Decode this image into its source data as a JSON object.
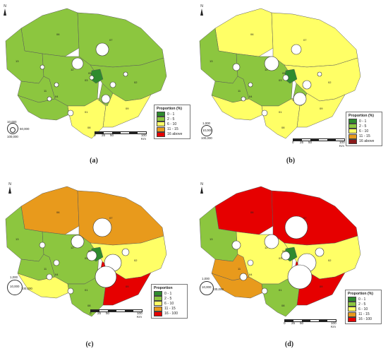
{
  "colors": {
    "c1": "#2e8b2e",
    "c2": "#8cc63f",
    "c3": "#ffff66",
    "c4": "#e89a1c",
    "c5": "#e60000",
    "c5b": "#8b1a1a",
    "border": "#5a5a5a",
    "circle": "#ffffff"
  },
  "north_label": "N",
  "scale": {
    "labels": [
      "0",
      "25",
      "50",
      "100 Km"
    ]
  },
  "panels": [
    {
      "caption": "(a)",
      "legend_title": "Proportion (%)",
      "classes": [
        {
          "label": "0 - 1",
          "color": "#2e8b2e"
        },
        {
          "label": "2 - 5",
          "color": "#8cc63f"
        },
        {
          "label": "6 - 10",
          "color": "#ffff66"
        },
        {
          "label": "11 - 15",
          "color": "#e89a1c"
        },
        {
          "label": "16 above",
          "color": "#e60000"
        }
      ],
      "circle_labels": [
        "10,000",
        "50,000",
        "100,000"
      ],
      "district_classes": {
        "n": "c2",
        "ne": "c2",
        "nw": "c2",
        "w": "c2",
        "c": "c2",
        "e": "c2",
        "sw": "c2",
        "s": "c3",
        "se": "c3",
        "pock": "c1",
        "strip": "c2"
      },
      "district_labels": [
        "13",
        "06",
        "07",
        "12",
        "03",
        "02",
        "11",
        "01",
        "04",
        "09",
        "05",
        "08"
      ],
      "circles": [
        8,
        9,
        3,
        4,
        3,
        6,
        3,
        3,
        4,
        3
      ]
    },
    {
      "caption": "(b)",
      "legend_title": "Proportion (%)",
      "classes": [
        {
          "label": "0 - 1",
          "color": "#2e8b2e"
        },
        {
          "label": "2 - 5",
          "color": "#8cc63f"
        },
        {
          "label": "6 - 10",
          "color": "#ffff66"
        },
        {
          "label": "11 - 15",
          "color": "#e89a1c"
        },
        {
          "label": "16 above",
          "color": "#8b1a1a"
        }
      ],
      "circle_labels": [
        "1,000",
        "10,000",
        "100,000"
      ],
      "district_classes": {
        "n": "c3",
        "ne": "c3",
        "nw": "c2",
        "w": "c2",
        "c": "c2",
        "e": "c3",
        "sw": "c3",
        "s": "c3",
        "se": "c3",
        "pock": "c1",
        "strip": "c2"
      },
      "district_labels": [
        "13",
        "06",
        "07",
        "12",
        "03",
        "02",
        "11",
        "01",
        "04",
        "09",
        "05",
        "08"
      ],
      "circles": [
        10,
        7,
        4,
        6,
        3,
        9,
        5,
        3,
        4,
        3
      ]
    },
    {
      "caption": "(c)",
      "legend_title": "Proportion",
      "classes": [
        {
          "label": "0 - 1",
          "color": "#2e8b2e"
        },
        {
          "label": "2 - 5",
          "color": "#8cc63f"
        },
        {
          "label": "6 - 10",
          "color": "#ffff66"
        },
        {
          "label": "11 - 15",
          "color": "#e89a1c"
        },
        {
          "label": "16 - 100",
          "color": "#e60000"
        }
      ],
      "circle_labels": [
        "1,000",
        "10,000",
        "100,000"
      ],
      "district_classes": {
        "n": "c4",
        "ne": "c4",
        "nw": "c2",
        "w": "c2",
        "c": "c2",
        "e": "c3",
        "sw": "c3",
        "s": "c2",
        "se": "c5",
        "pock": "c1",
        "strip": "c5"
      },
      "district_labels": [
        "13",
        "06",
        "07",
        "12",
        "03",
        "02",
        "11",
        "01",
        "04",
        "09",
        "05",
        "08"
      ],
      "circles": [
        9,
        13,
        7,
        12,
        4,
        15,
        4,
        5,
        4,
        4
      ]
    },
    {
      "caption": "(d)",
      "legend_title": "Proportion (%)",
      "classes": [
        {
          "label": "0 - 1",
          "color": "#2e8b2e"
        },
        {
          "label": "2 - 5",
          "color": "#8cc63f"
        },
        {
          "label": "6 - 10",
          "color": "#ffff66"
        },
        {
          "label": "11 - 15",
          "color": "#e89a1c"
        },
        {
          "label": "16 - 100",
          "color": "#e60000"
        }
      ],
      "circle_labels": [
        "1,000",
        "10,000",
        "100,000"
      ],
      "district_classes": {
        "n": "c5",
        "ne": "c5",
        "nw": "c2",
        "w": "c4",
        "c": "c3",
        "e": "c3",
        "sw": "c4",
        "s": "c2",
        "se": "c5",
        "pock": "c1",
        "strip": "c5"
      },
      "district_labels": [
        "13",
        "06",
        "07",
        "12",
        "03",
        "02",
        "11",
        "01",
        "04",
        "09",
        "05",
        "08"
      ],
      "circles": [
        10,
        16,
        6,
        13,
        4,
        17,
        6,
        6,
        4,
        5
      ]
    }
  ]
}
